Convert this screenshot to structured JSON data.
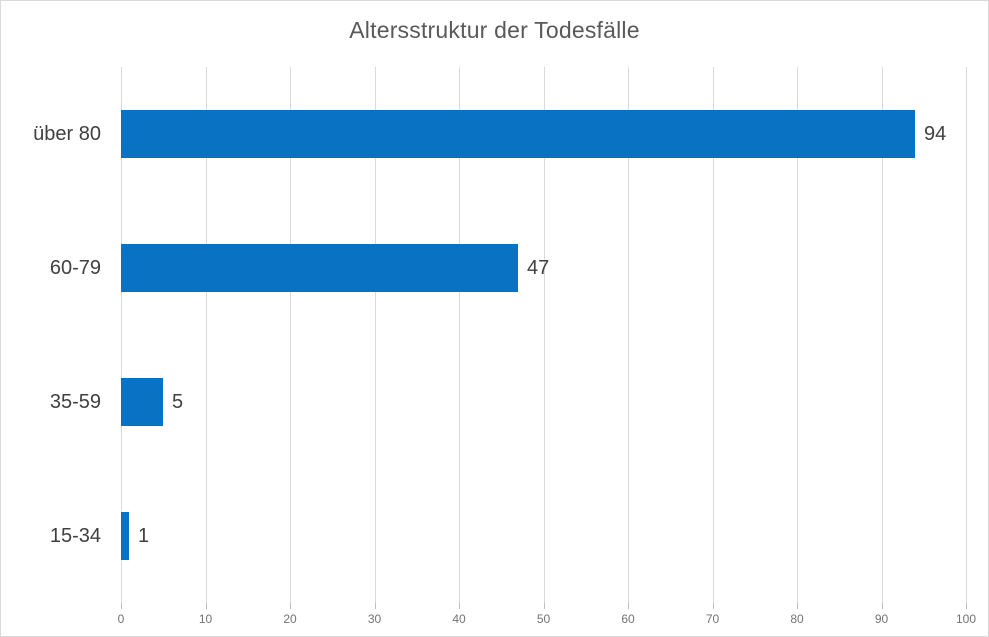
{
  "chart_data": {
    "type": "bar",
    "orientation": "horizontal",
    "title": "Altersstruktur der Todesfälle",
    "categories": [
      "über 80",
      "60-79",
      "35-59",
      "15-34"
    ],
    "values": [
      94,
      47,
      5,
      1
    ],
    "data_labels": [
      "94",
      "47",
      "5",
      "1"
    ],
    "xlabel": "",
    "ylabel": "",
    "xlim": [
      0,
      100
    ],
    "xticks": [
      0,
      10,
      20,
      30,
      40,
      50,
      60,
      70,
      80,
      90,
      100
    ],
    "grid": true,
    "legend": "none",
    "colors": {
      "bar": "#0a72c2",
      "title_text": "#595959",
      "label_text": "#404040",
      "tick_text": "#737373",
      "gridline": "#d9d9d9",
      "tick_mark": "#bfbfbf",
      "chart_border": "#d9d9d9",
      "background": "#ffffff"
    }
  }
}
